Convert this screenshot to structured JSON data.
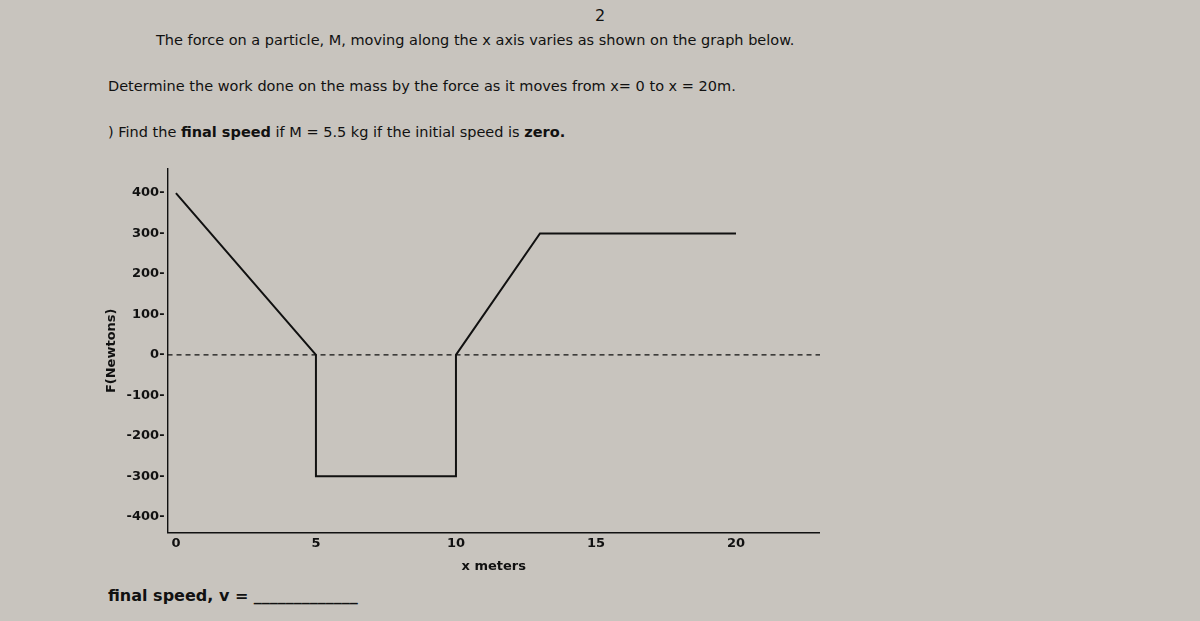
{
  "chart_data": {
    "type": "line",
    "title": "The force on a particle, M,  moving along the x axis varies as shown on the graph below.",
    "subtitle": [
      "Determine the work done on the mass by the force as it moves from x= 0 to x = 20m.",
      [
        ") Find the ",
        "final speed",
        " if M = 5.5 kg if the initial speed is ",
        "zero."
      ]
    ],
    "annotations": [
      "2",
      "final speed, v = _____________"
    ],
    "xlabel": "x meters",
    "ylabel": "F(Newtons)",
    "x": [
      0,
      5,
      5,
      10,
      10,
      13,
      20
    ],
    "values": [
      400,
      0,
      -300,
      -300,
      0,
      300,
      300
    ],
    "color": "#111111",
    "xlim": [
      -0.3,
      23
    ],
    "ylim": [
      -440,
      460
    ],
    "xticks": [
      0,
      5,
      10,
      15,
      20
    ],
    "yticks": [
      {
        "value": -400,
        "label": "-400-"
      },
      {
        "value": -300,
        "label": "-300-"
      },
      {
        "value": -200,
        "label": "-200-"
      },
      {
        "value": -100,
        "label": "-100-"
      },
      {
        "value": 0,
        "label": "0-"
      },
      {
        "value": 100,
        "label": "100-"
      },
      {
        "value": 200,
        "label": "200-"
      },
      {
        "value": 300,
        "label": "300-"
      },
      {
        "value": 400,
        "label": "400-"
      }
    ],
    "grid": false,
    "marker": "none",
    "line_style": "solid"
  }
}
